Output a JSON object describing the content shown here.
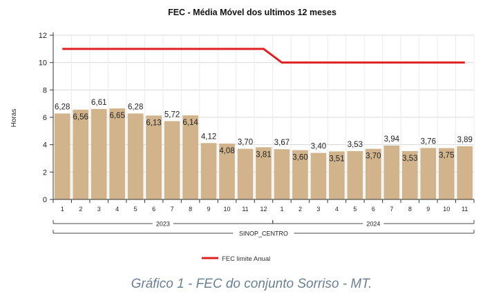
{
  "chart_data": {
    "type": "bar",
    "title": "FEC - Média Móvel dos ultimos 12 meses",
    "ylabel": "Horas",
    "ylim": [
      0,
      12
    ],
    "yticks": [
      0,
      2,
      4,
      6,
      8,
      10,
      12
    ],
    "grid": true,
    "legend_position": "bottom",
    "categories": [
      "1",
      "2",
      "3",
      "4",
      "5",
      "6",
      "7",
      "8",
      "9",
      "10",
      "11",
      "12",
      "1",
      "2",
      "3",
      "4",
      "5",
      "6",
      "7",
      "8",
      "9",
      "10",
      "11"
    ],
    "year_groups": [
      {
        "label": "2023",
        "count": 12
      },
      {
        "label": "2024",
        "count": 11
      }
    ],
    "set_label": "SINOP_CENTRO",
    "series": [
      {
        "type": "bar",
        "color": "#d2b48c",
        "values": [
          6.28,
          6.56,
          6.61,
          6.65,
          6.28,
          6.13,
          5.72,
          6.14,
          4.12,
          4.08,
          3.7,
          3.81,
          3.67,
          3.6,
          3.4,
          3.51,
          3.53,
          3.7,
          3.94,
          3.53,
          3.76,
          3.75,
          3.89
        ],
        "labels": [
          "6,28",
          "6,56",
          "6,61",
          "6,65",
          "6,28",
          "6,13",
          "5,72",
          "6,14",
          "4,12",
          "4,08",
          "3,70",
          "3,81",
          "3,67",
          "3,60",
          "3,40",
          "3,51",
          "3,53",
          "3,70",
          "3,94",
          "3,53",
          "3,76",
          "3,75",
          "3,89"
        ]
      },
      {
        "type": "line",
        "name": "FEC limite Anual",
        "color": "#e02020",
        "values": [
          11,
          11,
          11,
          11,
          11,
          11,
          11,
          11,
          11,
          11,
          11,
          11,
          10,
          10,
          10,
          10,
          10,
          10,
          10,
          10,
          10,
          10,
          10
        ]
      }
    ]
  },
  "caption": "Gráfico 1 - FEC do conjunto Sorriso - MT."
}
